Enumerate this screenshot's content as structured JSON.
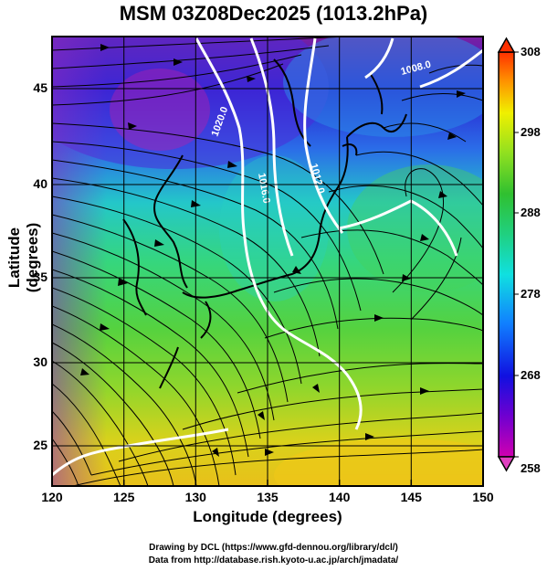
{
  "title": "MSM 03Z08Dec2025 (1013.2hPa)",
  "xlabel": "Longitude (degrees)",
  "ylabel": "Latitude  (degrees)",
  "credits": [
    "Drawing by DCL (https://www.gfd-dennou.org/library/dcl/)",
    "Data from http://database.rish.kyoto-u.ac.jp/arch/jmadata/"
  ],
  "map": {
    "lon_ticks": [
      "120",
      "125",
      "130",
      "135",
      "140",
      "145",
      "150"
    ],
    "lat_ticks": [
      "45",
      "40",
      "35",
      "30",
      "25"
    ],
    "lon_range": [
      120,
      150
    ],
    "lat_range": [
      22.4,
      47.6
    ]
  },
  "colorbar": {
    "labels": [
      "308",
      "298",
      "288",
      "278",
      "268",
      "258"
    ],
    "range": [
      258,
      308
    ]
  },
  "contour_labels": [
    "1020.0",
    "1016.0",
    "1012.0",
    "1008.0"
  ]
}
